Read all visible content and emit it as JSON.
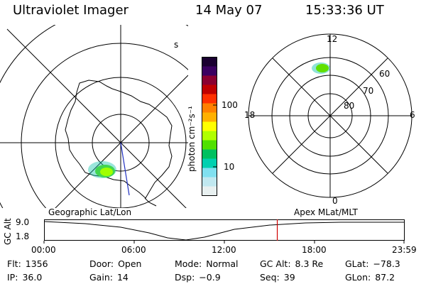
{
  "header": {
    "instrument": "Ultraviolet Imager",
    "date": "14 May 07",
    "time": "15:33:36 UT"
  },
  "colorbar": {
    "label": "photon cm⁻²s⁻¹",
    "ticks": [
      "100",
      "10"
    ],
    "colors_top_to_bottom": [
      "#1a0030",
      "#3a0060",
      "#8a0030",
      "#c00000",
      "#ff3000",
      "#ff8000",
      "#ffb000",
      "#ffff00",
      "#b0ff00",
      "#50e000",
      "#00c060",
      "#00d0b0",
      "#80e0f0",
      "#c0e8f0",
      "#e8f0f0"
    ]
  },
  "left_map": {
    "caption": "Geographic Lat/Lon",
    "edge_mark": "s",
    "aurora_color": "#60e000"
  },
  "right_map": {
    "caption": "Apex  MLat/MLT",
    "mlt_labels": {
      "top": "12",
      "left": "18",
      "right": "6",
      "bottom": "0"
    },
    "lat_labels": [
      "60",
      "70",
      "80"
    ],
    "aurora_color": "#60e000"
  },
  "altitude_plot": {
    "axis_label": "GC Alt",
    "y_top": "9.0",
    "y_bottom": "1.8",
    "x_ticks": [
      "00:00",
      "06:00",
      "12:00",
      "18:00",
      "23:59"
    ],
    "current_time_fraction": 0.648,
    "marker_color": "#d00000"
  },
  "status": {
    "flt": {
      "label": "Flt:",
      "value": "1356"
    },
    "ip": {
      "label": "IP:",
      "value": "36.0"
    },
    "door": {
      "label": "Door:",
      "value": "Open"
    },
    "gain": {
      "label": "Gain:",
      "value": "14"
    },
    "mode": {
      "label": "Mode:",
      "value": "Normal"
    },
    "dsp": {
      "label": "Dsp:",
      "value": "−0.9"
    },
    "gc_alt": {
      "label": "GC Alt:",
      "value": "8.3 Re"
    },
    "seq": {
      "label": "Seq:",
      "value": "39"
    },
    "glat": {
      "label": "GLat:",
      "value": "−78.3"
    },
    "glon": {
      "label": "GLon:",
      "value": "87.2"
    }
  }
}
